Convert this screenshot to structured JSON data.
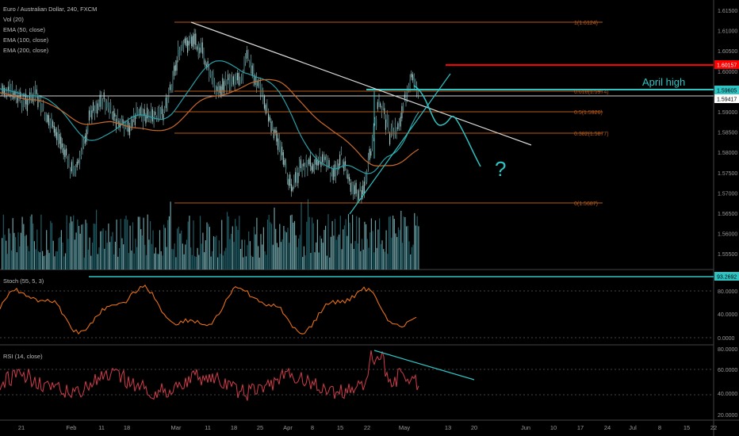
{
  "legend": {
    "symbol": "Euro / Australian Dollar, 240, FXCM",
    "vol": "Vol (20)",
    "ema50": "EMA (50, close)",
    "ema100": "EMA (100, close)",
    "ema200": "EMA (200, close)"
  },
  "annotations": {
    "april_high": "April high",
    "question": "?"
  },
  "fib_labels": {
    "f1": "1(1.6124)",
    "f0618": "0.618(1.5974)",
    "f05": "0.5(1.5926)",
    "f0382": "0.382(1.5877)",
    "f0": "0(1.5687)"
  },
  "price_tags": {
    "red": "1.60157",
    "cyan": "1.59605",
    "white": "1.59417"
  },
  "stoch": {
    "title": "Stoch (55, 5, 3)",
    "tag": "93.2692",
    "ticks": [
      "80.0000",
      "40.0000",
      "0.0000"
    ]
  },
  "rsi": {
    "title": "RSI (14, close)",
    "ticks": [
      "80.0000",
      "60.0000",
      "40.0000",
      "20.0000"
    ]
  },
  "price_axis": {
    "ticks": [
      "1.61500",
      "1.61000",
      "1.60500",
      "1.60000",
      "1.59500",
      "1.59000",
      "1.58500",
      "1.58000",
      "1.57500",
      "1.57000",
      "1.56500",
      "1.56000",
      "1.55500"
    ]
  },
  "time_axis": {
    "labels": [
      "21",
      "Feb",
      "11",
      "18",
      "Mar",
      "11",
      "18",
      "25",
      "Apr",
      "8",
      "15",
      "22",
      "May",
      "13",
      "20",
      "Jun",
      "10",
      "17",
      "24",
      "Jul",
      "8",
      "15",
      "22"
    ]
  },
  "chart_data": {
    "type": "line",
    "title": "Euro / Australian Dollar, 240, FXCM",
    "panes": [
      "price",
      "volume",
      "stochastic",
      "rsi"
    ],
    "price_range": [
      1.552,
      1.617
    ],
    "key_levels": [
      {
        "label": "1(1.6124)",
        "value": 1.6124
      },
      {
        "label": "0.618(1.5974)",
        "value": 1.5974
      },
      {
        "label": "0.5(1.5926)",
        "value": 1.5926
      },
      {
        "label": "0.382(1.5877)",
        "value": 1.5877
      },
      {
        "label": "0(1.5687)",
        "value": 1.5687
      }
    ],
    "horizontal_lines": [
      {
        "value": 1.60157,
        "color": "#ff0000"
      },
      {
        "value": 1.59605,
        "color": "#2ec4c4"
      },
      {
        "value": 1.59417,
        "color": "#cccccc"
      }
    ],
    "series": [
      {
        "name": "Vol (20)"
      },
      {
        "name": "EMA (50, close)"
      },
      {
        "name": "EMA (100, close)"
      },
      {
        "name": "EMA (200, close)"
      },
      {
        "name": "Stoch (55, 5, 3)",
        "last": 93.2692
      },
      {
        "name": "RSI (14, close)"
      }
    ],
    "colors": {
      "background": "#000000",
      "candle": "#9cc7c7",
      "fib": "#b85a1a",
      "red": "#ff0000",
      "cyan": "#2ec4c4",
      "stoch": "#e8701a",
      "rsi": "#d23c4a",
      "grid": "#333333"
    }
  }
}
